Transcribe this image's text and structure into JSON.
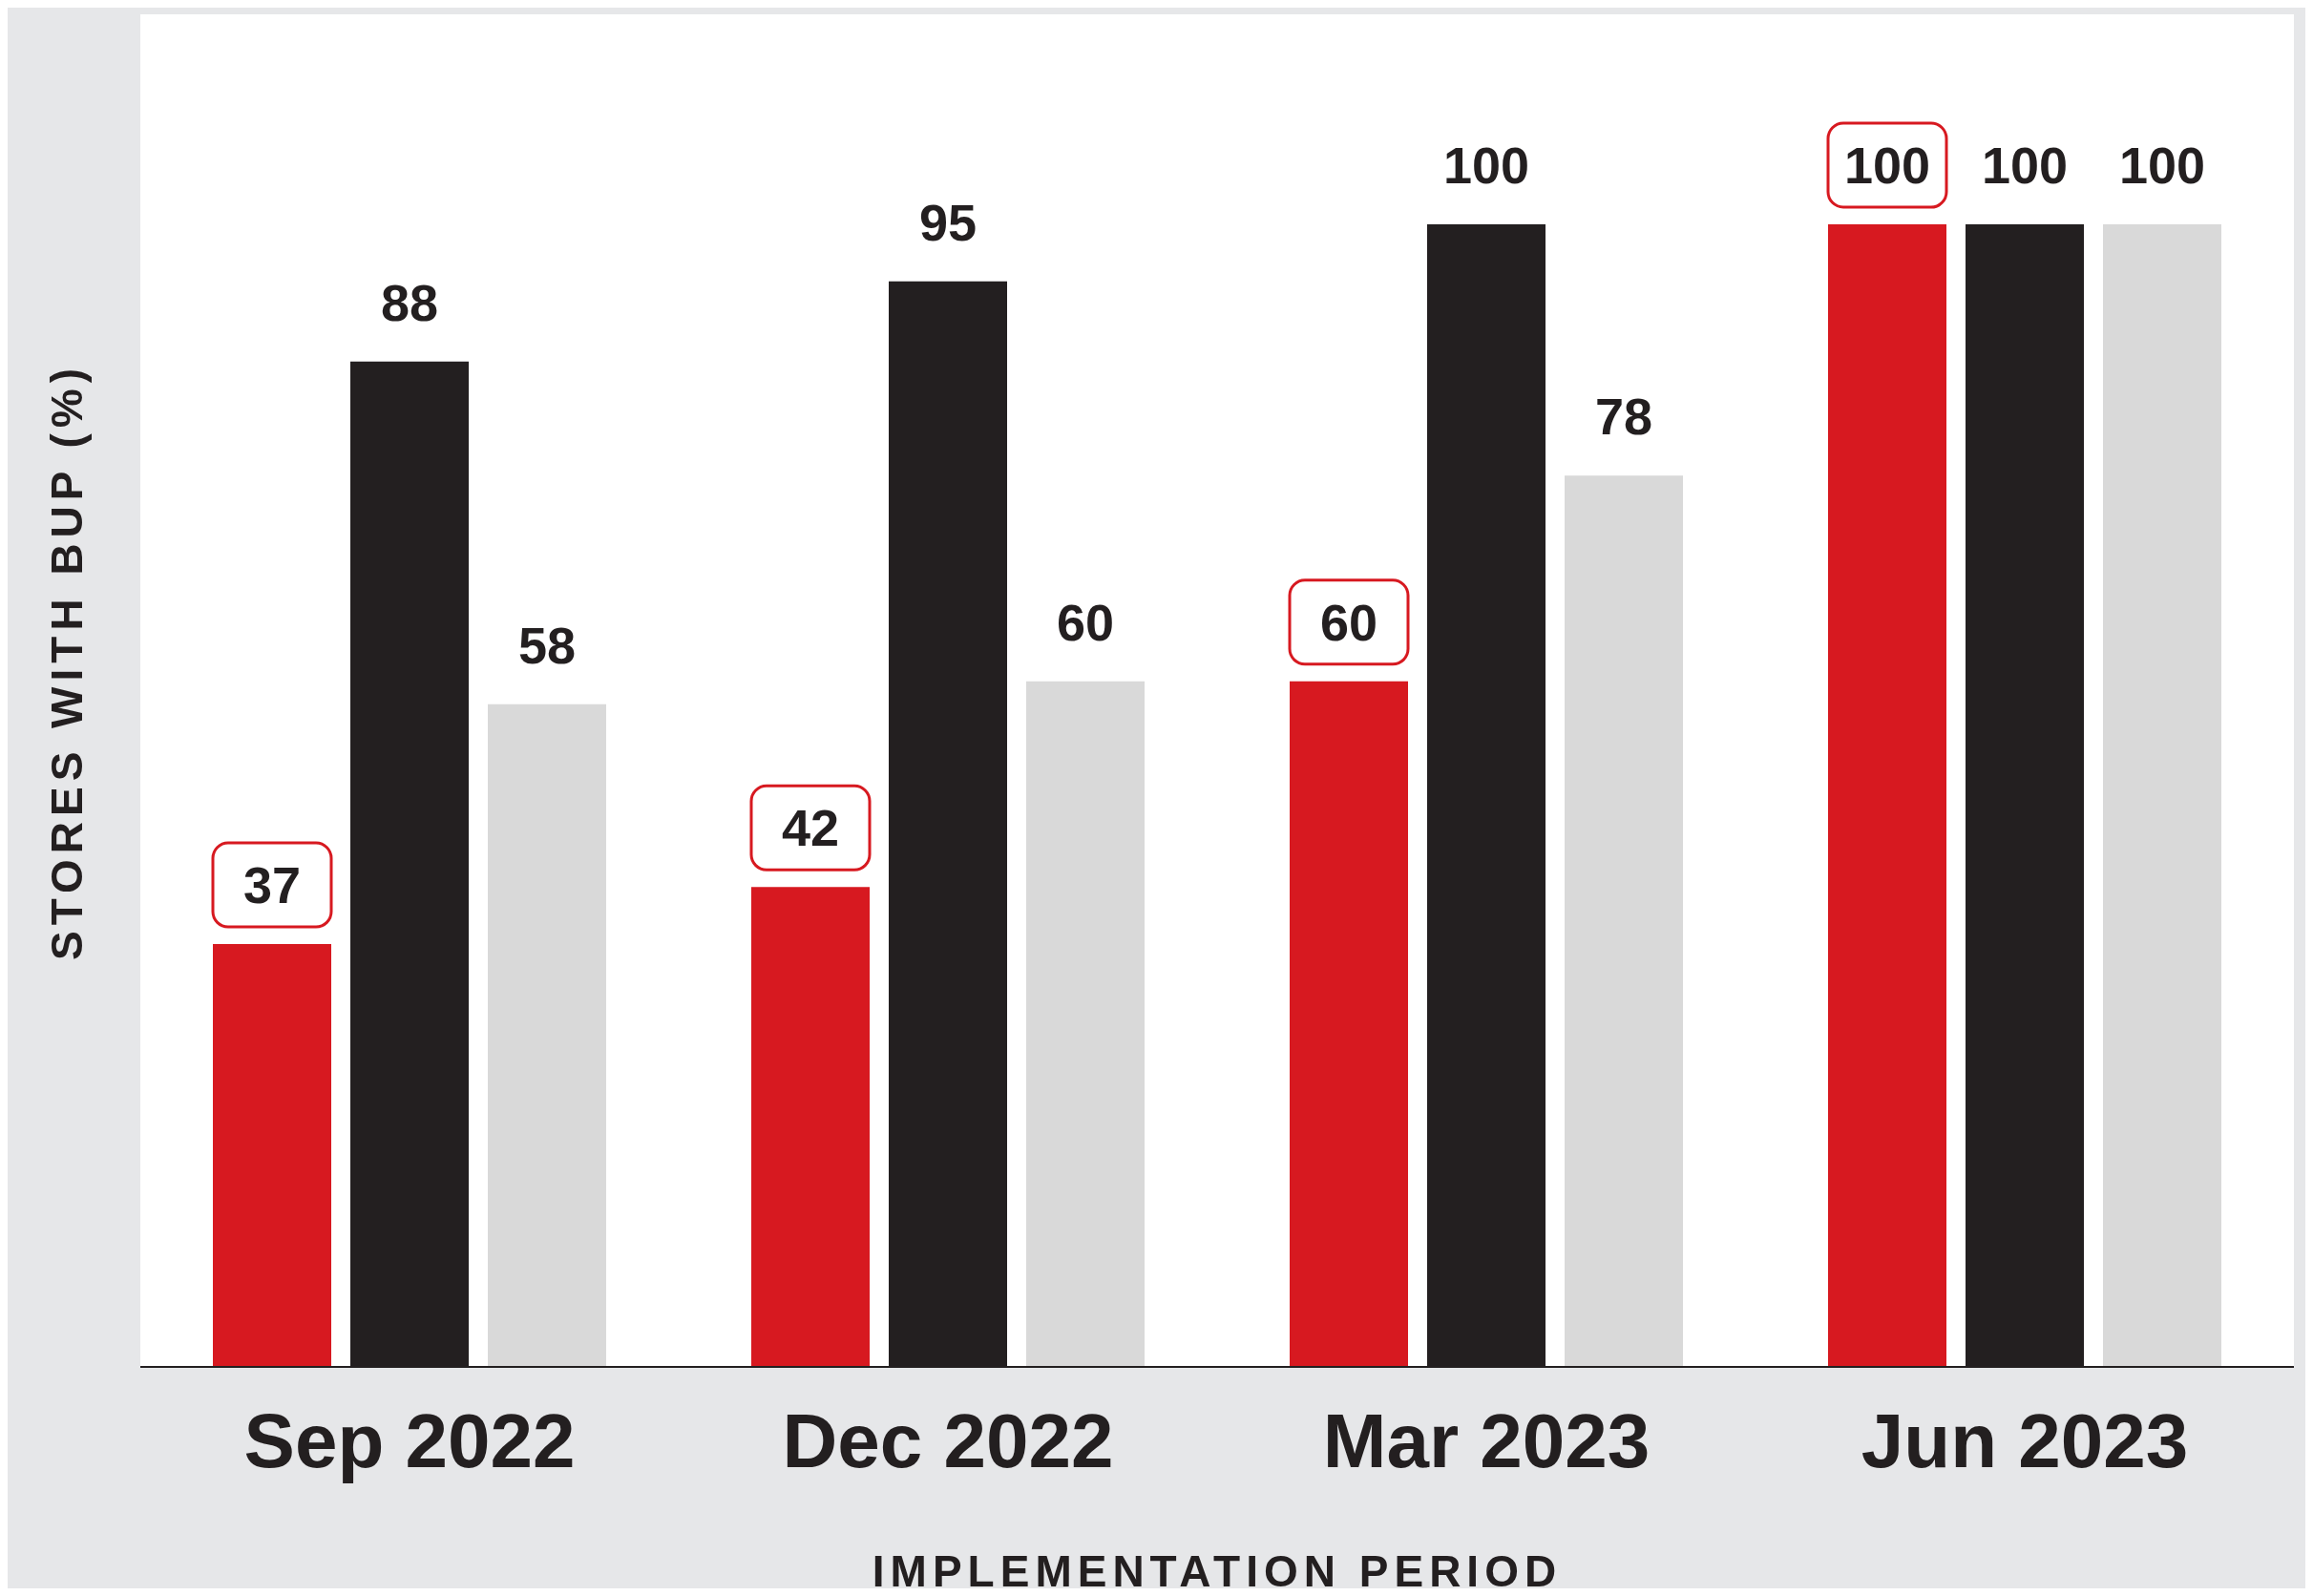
{
  "chart_data": {
    "type": "bar",
    "xlabel": "IMPLEMENTATION PERIOD",
    "ylabel": "STORES WITH BUP (%)",
    "categories": [
      "Sep 2022",
      "Dec 2022",
      "Mar 2023",
      "Jun 2023"
    ],
    "series": [
      {
        "color": "#d71920",
        "values": [
          37,
          42,
          60,
          100
        ]
      },
      {
        "color": "#231f20",
        "values": [
          88,
          95,
          100,
          100
        ]
      },
      {
        "color": "#d9d9d9",
        "values": [
          58,
          60,
          78,
          100
        ]
      }
    ],
    "data_labels": true,
    "legend": false,
    "grid": false
  }
}
